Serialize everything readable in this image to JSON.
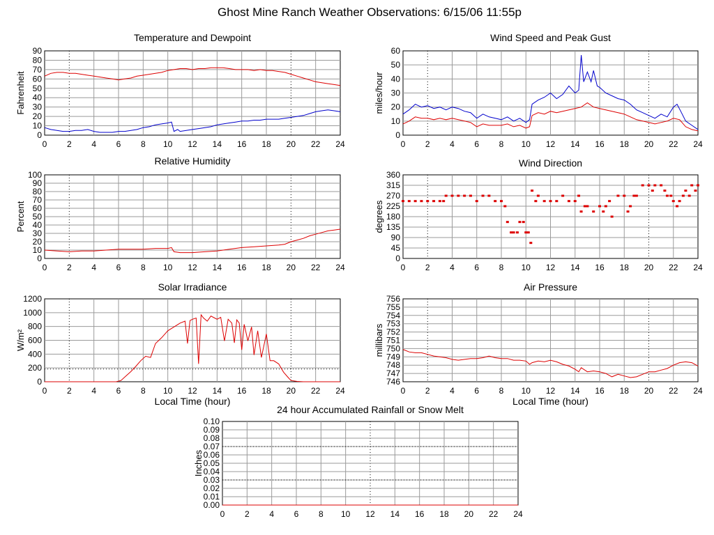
{
  "title": "Ghost Mine Ranch Weather Observations: 6/15/06 11:55p",
  "colors": {
    "red": "#dd0000",
    "blue": "#0000cc",
    "grid": "#9a9a9a",
    "dot": "#000000"
  },
  "chart_data": [
    {
      "id": "temp",
      "type": "line",
      "title": "Temperature and Dewpoint",
      "ylabel": "Fahrenheit",
      "xlabel": "",
      "xlim": [
        0,
        24
      ],
      "ylim": [
        0,
        90
      ],
      "xticks": [
        "0",
        "2",
        "4",
        "6",
        "8",
        "10",
        "12",
        "14",
        "16",
        "18",
        "20",
        "22",
        "24"
      ],
      "yticks": [
        "0",
        "10",
        "20",
        "30",
        "40",
        "50",
        "60",
        "70",
        "80",
        "90"
      ],
      "grid": true,
      "series": [
        {
          "color": "red",
          "x": [
            0,
            0.5,
            1,
            1.5,
            2,
            2.5,
            3,
            3.5,
            4,
            4.5,
            5,
            5.5,
            6,
            6.5,
            7,
            7.5,
            8,
            8.5,
            9,
            9.5,
            10,
            10.5,
            11,
            11.5,
            12,
            12.5,
            13,
            13.5,
            14,
            14.5,
            15,
            15.5,
            16,
            16.5,
            17,
            17.5,
            18,
            18.5,
            19,
            19.5,
            20,
            20.5,
            21,
            21.5,
            22,
            22.5,
            23,
            23.5,
            24
          ],
          "y": [
            63,
            66,
            67,
            67,
            66,
            66,
            65,
            64,
            63,
            62,
            61,
            60,
            59,
            60,
            61,
            63,
            64,
            65,
            66,
            67,
            69,
            70,
            71,
            71,
            70,
            71,
            71,
            72,
            72,
            72,
            71,
            70,
            70,
            70,
            69,
            70,
            69,
            69,
            68,
            67,
            65,
            63,
            61,
            59,
            57,
            56,
            55,
            54,
            53
          ]
        },
        {
          "color": "blue",
          "x": [
            0,
            0.5,
            1,
            1.5,
            2,
            2.5,
            3,
            3.5,
            4,
            4.5,
            5,
            5.5,
            6,
            6.5,
            7,
            7.5,
            8,
            8.5,
            9,
            9.5,
            10,
            10.3,
            10.5,
            10.8,
            11,
            11.5,
            12,
            12.5,
            13,
            13.5,
            14,
            14.5,
            15,
            15.5,
            16,
            16.5,
            17,
            17.5,
            18,
            18.5,
            19,
            19.5,
            20,
            20.5,
            21,
            21.5,
            22,
            22.5,
            23,
            23.5,
            24
          ],
          "y": [
            8,
            6,
            5,
            4,
            4,
            5,
            5,
            6,
            4,
            3,
            3,
            3,
            4,
            4,
            5,
            6,
            8,
            9,
            11,
            12,
            13,
            14,
            4,
            6,
            4,
            5,
            6,
            7,
            8,
            9,
            11,
            12,
            13,
            14,
            15,
            15,
            16,
            16,
            17,
            17,
            17,
            18,
            19,
            20,
            21,
            23,
            25,
            26,
            27,
            26,
            25
          ]
        }
      ]
    },
    {
      "id": "wind",
      "type": "line",
      "title": "Wind Speed and Peak Gust",
      "ylabel": "miles/hour",
      "xlabel": "",
      "xlim": [
        0,
        24
      ],
      "ylim": [
        0,
        60
      ],
      "xticks": [
        "0",
        "2",
        "4",
        "6",
        "8",
        "10",
        "12",
        "14",
        "16",
        "18",
        "20",
        "22",
        "24"
      ],
      "yticks": [
        "0",
        "10",
        "20",
        "30",
        "40",
        "50",
        "60"
      ],
      "grid": true,
      "series": [
        {
          "color": "blue",
          "x": [
            0,
            0.5,
            1,
            1.5,
            2,
            2.5,
            3,
            3.5,
            4,
            4.5,
            5,
            5.5,
            6,
            6.5,
            7,
            7.5,
            8,
            8.5,
            9,
            9.5,
            10,
            10.3,
            10.5,
            11,
            11.5,
            12,
            12.5,
            13,
            13.5,
            14,
            14.3,
            14.5,
            14.7,
            15,
            15.3,
            15.5,
            15.8,
            16,
            16.5,
            17,
            17.5,
            18,
            18.5,
            19,
            19.5,
            20,
            20.5,
            21,
            21.5,
            22,
            22.3,
            22.6,
            23,
            23.5,
            24
          ],
          "y": [
            15,
            18,
            22,
            20,
            21,
            19,
            20,
            18,
            20,
            19,
            17,
            16,
            12,
            15,
            13,
            12,
            11,
            13,
            10,
            12,
            9,
            11,
            22,
            25,
            27,
            30,
            26,
            29,
            35,
            30,
            32,
            57,
            38,
            45,
            38,
            46,
            35,
            34,
            30,
            28,
            26,
            25,
            22,
            18,
            16,
            14,
            12,
            15,
            13,
            20,
            22,
            17,
            10,
            7,
            4
          ]
        },
        {
          "color": "red",
          "x": [
            0,
            0.5,
            1,
            1.5,
            2,
            2.5,
            3,
            3.5,
            4,
            4.5,
            5,
            5.5,
            6,
            6.5,
            7,
            7.5,
            8,
            8.5,
            9,
            9.5,
            10,
            10.3,
            10.5,
            11,
            11.5,
            12,
            12.5,
            13,
            13.5,
            14,
            14.5,
            15,
            15.5,
            16,
            16.5,
            17,
            17.5,
            18,
            18.5,
            19,
            19.5,
            20,
            20.5,
            21,
            21.5,
            22,
            22.5,
            23,
            23.5,
            24
          ],
          "y": [
            8,
            10,
            13,
            12,
            12,
            11,
            12,
            11,
            12,
            11,
            10,
            9,
            6,
            8,
            7,
            7,
            7,
            8,
            6,
            7,
            5,
            6,
            14,
            16,
            15,
            17,
            16,
            17,
            18,
            19,
            20,
            23,
            20,
            19,
            18,
            17,
            16,
            15,
            13,
            11,
            10,
            9,
            8,
            9,
            10,
            12,
            11,
            6,
            4,
            3
          ]
        }
      ]
    },
    {
      "id": "rh",
      "type": "line",
      "title": "Relative Humidity",
      "ylabel": "Percent",
      "xlabel": "",
      "xlim": [
        0,
        24
      ],
      "ylim": [
        0,
        100
      ],
      "xticks": [
        "0",
        "2",
        "4",
        "6",
        "8",
        "10",
        "12",
        "14",
        "16",
        "18",
        "20",
        "22",
        "24"
      ],
      "yticks": [
        "0",
        "10",
        "20",
        "30",
        "40",
        "50",
        "60",
        "70",
        "80",
        "90",
        "100"
      ],
      "grid": true,
      "series": [
        {
          "color": "red",
          "x": [
            0,
            1,
            2,
            3,
            4,
            5,
            6,
            7,
            8,
            9,
            10,
            10.3,
            10.5,
            11,
            12,
            13,
            14,
            15,
            16,
            17,
            18,
            19,
            19.5,
            20,
            20.5,
            21,
            21.5,
            22,
            22.5,
            23,
            23.5,
            24
          ],
          "y": [
            10,
            9,
            8,
            9,
            9,
            10,
            11,
            11,
            11,
            12,
            12,
            13,
            8,
            7,
            7,
            8,
            9,
            11,
            13,
            14,
            15,
            16,
            17,
            20,
            22,
            24,
            27,
            29,
            31,
            33,
            34,
            35
          ]
        }
      ]
    },
    {
      "id": "dir",
      "type": "scatter",
      "title": "Wind Direction",
      "ylabel": "degrees",
      "xlabel": "",
      "xlim": [
        0,
        24
      ],
      "ylim": [
        0,
        360
      ],
      "xticks": [
        "0",
        "2",
        "4",
        "6",
        "8",
        "10",
        "12",
        "14",
        "16",
        "18",
        "20",
        "22",
        "24"
      ],
      "yticks": [
        "0",
        "45",
        "90",
        "135",
        "180",
        "225",
        "270",
        "315",
        "360"
      ],
      "grid": true,
      "series": [
        {
          "color": "red",
          "x": [
            0,
            0.5,
            1,
            1.5,
            2,
            2.5,
            3,
            3.3,
            3.5,
            4,
            4.5,
            5,
            5.5,
            6,
            6.5,
            7,
            7.5,
            8,
            8.3,
            8.5,
            8.8,
            9,
            9.3,
            9.5,
            9.8,
            10,
            10.2,
            10.4,
            10.5,
            10.8,
            11,
            11.5,
            12,
            12.5,
            13,
            13.5,
            14,
            14.3,
            14.5,
            14.8,
            15,
            15.5,
            16,
            16.3,
            16.5,
            16.8,
            17,
            17.5,
            18,
            18.3,
            18.5,
            18.8,
            19,
            19.5,
            20,
            20.3,
            20.5,
            21,
            21.3,
            21.5,
            21.8,
            22,
            22.3,
            22.5,
            22.8,
            23,
            23.3,
            23.5,
            23.8,
            24
          ],
          "y": [
            247,
            247,
            247,
            247,
            247,
            247,
            247,
            247,
            270,
            270,
            270,
            270,
            270,
            247,
            270,
            270,
            247,
            247,
            225,
            157,
            112,
            112,
            112,
            157,
            157,
            112,
            112,
            67,
            292,
            247,
            270,
            247,
            247,
            247,
            270,
            247,
            247,
            270,
            202,
            225,
            225,
            202,
            225,
            202,
            225,
            247,
            180,
            270,
            270,
            202,
            225,
            270,
            270,
            315,
            315,
            292,
            315,
            315,
            292,
            270,
            270,
            247,
            225,
            247,
            270,
            292,
            270,
            315,
            292,
            315
          ]
        }
      ]
    },
    {
      "id": "solar",
      "type": "line",
      "title": "Solar Irradiance",
      "ylabel": "W/m²",
      "xlabel": "Local Time (hour)",
      "xlim": [
        0,
        24
      ],
      "ylim": [
        0,
        1300
      ],
      "xticks": [
        "0",
        "2",
        "4",
        "6",
        "8",
        "10",
        "12",
        "14",
        "16",
        "18",
        "20",
        "22",
        "24"
      ],
      "yticks": [
        "0",
        "200",
        "400",
        "600",
        "800",
        "1000",
        "1200"
      ],
      "grid": true,
      "series": [
        {
          "color": "red",
          "x": [
            0,
            1,
            2,
            3,
            4,
            5,
            5.8,
            6.2,
            6.6,
            7,
            7.4,
            7.8,
            8.2,
            8.6,
            9,
            9.5,
            10,
            10.5,
            11,
            11.4,
            11.6,
            11.8,
            12,
            12.3,
            12.5,
            12.7,
            12.9,
            13.2,
            13.5,
            13.8,
            14,
            14.3,
            14.6,
            14.9,
            15.2,
            15.4,
            15.6,
            15.8,
            16,
            16.2,
            16.5,
            16.8,
            17,
            17.3,
            17.6,
            18,
            18.3,
            18.6,
            19,
            19.4,
            19.8,
            20,
            20.5,
            21,
            22,
            23,
            24
          ],
          "y": [
            0,
            0,
            0,
            0,
            0,
            0,
            0,
            20,
            90,
            160,
            240,
            330,
            400,
            380,
            600,
            690,
            800,
            860,
            920,
            950,
            600,
            960,
            980,
            1000,
            280,
            1050,
            1000,
            950,
            1030,
            1000,
            980,
            1010,
            640,
            980,
            920,
            610,
            970,
            920,
            500,
            900,
            640,
            860,
            420,
            800,
            380,
            750,
            330,
            330,
            280,
            150,
            60,
            20,
            5,
            0,
            0,
            0,
            0
          ]
        }
      ]
    },
    {
      "id": "pressure",
      "type": "line",
      "title": "Air Pressure",
      "ylabel": "millibars",
      "xlabel": "Local Time (hour)",
      "xlim": [
        0,
        24
      ],
      "ylim": [
        746,
        756
      ],
      "xticks": [
        "0",
        "2",
        "4",
        "6",
        "8",
        "10",
        "12",
        "14",
        "16",
        "18",
        "20",
        "22",
        "24"
      ],
      "yticks": [
        "746",
        "747",
        "748",
        "749",
        "750",
        "751",
        "752",
        "753",
        "754",
        "755",
        "756"
      ],
      "grid": true,
      "series": [
        {
          "color": "red",
          "x": [
            0,
            0.5,
            1,
            1.5,
            2,
            2.5,
            3,
            3.5,
            4,
            4.5,
            5,
            5.5,
            6,
            6.5,
            7,
            7.5,
            8,
            8.5,
            9,
            9.5,
            10,
            10.3,
            10.5,
            11,
            11.5,
            12,
            12.5,
            13,
            13.5,
            14,
            14.3,
            14.5,
            15,
            15.5,
            16,
            16.5,
            17,
            17.5,
            18,
            18.5,
            19,
            19.5,
            20,
            20.5,
            21,
            21.5,
            22,
            22.5,
            23,
            23.5,
            24
          ],
          "y": [
            749.9,
            749.6,
            749.5,
            749.5,
            749.3,
            749.1,
            749.0,
            748.9,
            748.7,
            748.6,
            748.7,
            748.8,
            748.8,
            748.9,
            749.1,
            748.9,
            748.8,
            748.8,
            748.6,
            748.6,
            748.5,
            748.1,
            748.3,
            748.5,
            748.4,
            748.6,
            748.4,
            748.1,
            747.9,
            747.5,
            747.2,
            747.7,
            747.2,
            747.3,
            747.2,
            747.0,
            746.6,
            746.9,
            746.7,
            746.5,
            746.6,
            746.9,
            747.2,
            747.2,
            747.4,
            747.6,
            748.0,
            748.3,
            748.4,
            748.3,
            747.9
          ]
        }
      ]
    },
    {
      "id": "rain",
      "type": "line",
      "title": "24 hour Accumulated Rainfall or Snow Melt",
      "ylabel": "Inches",
      "xlabel": "",
      "xlim": [
        0,
        24
      ],
      "ylim": [
        0,
        0.1
      ],
      "xticks": [
        "0",
        "2",
        "4",
        "6",
        "8",
        "10",
        "12",
        "14",
        "16",
        "18",
        "20",
        "22",
        "24"
      ],
      "yticks": [
        "0.00",
        "0.01",
        "0.02",
        "0.03",
        "0.04",
        "0.05",
        "0.06",
        "0.07",
        "0.08",
        "0.09",
        "0.10"
      ],
      "grid": true,
      "series": [
        {
          "color": "red",
          "x": [
            0,
            24
          ],
          "y": [
            0,
            0
          ]
        }
      ]
    }
  ]
}
